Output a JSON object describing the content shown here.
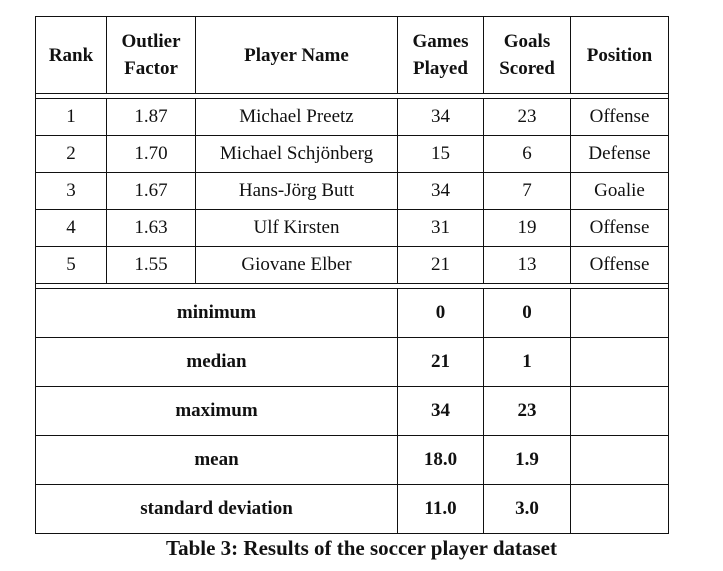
{
  "table": {
    "headers": [
      "Rank",
      "Outlier Factor",
      "Player Name",
      "Games Played",
      "Goals Scored",
      "Position"
    ],
    "rows": [
      [
        "1",
        "1.87",
        "Michael Preetz",
        "34",
        "23",
        "Offense"
      ],
      [
        "2",
        "1.70",
        "Michael Schjönberg",
        "15",
        "6",
        "Defense"
      ],
      [
        "3",
        "1.67",
        "Hans-Jörg Butt",
        "34",
        "7",
        "Goalie"
      ],
      [
        "4",
        "1.63",
        "Ulf Kirsten",
        "31",
        "19",
        "Offense"
      ],
      [
        "5",
        "1.55",
        "Giovane Elber",
        "21",
        "13",
        "Offense"
      ]
    ],
    "stats": [
      {
        "label": "minimum",
        "games": "0",
        "goals": "0"
      },
      {
        "label": "median",
        "games": "21",
        "goals": "1"
      },
      {
        "label": "maximum",
        "games": "34",
        "goals": "23"
      },
      {
        "label": "mean",
        "games": "18.0",
        "goals": "1.9"
      },
      {
        "label": "standard deviation",
        "games": "11.0",
        "goals": "3.0"
      }
    ]
  },
  "caption": "Table 3: Results of the soccer player dataset"
}
